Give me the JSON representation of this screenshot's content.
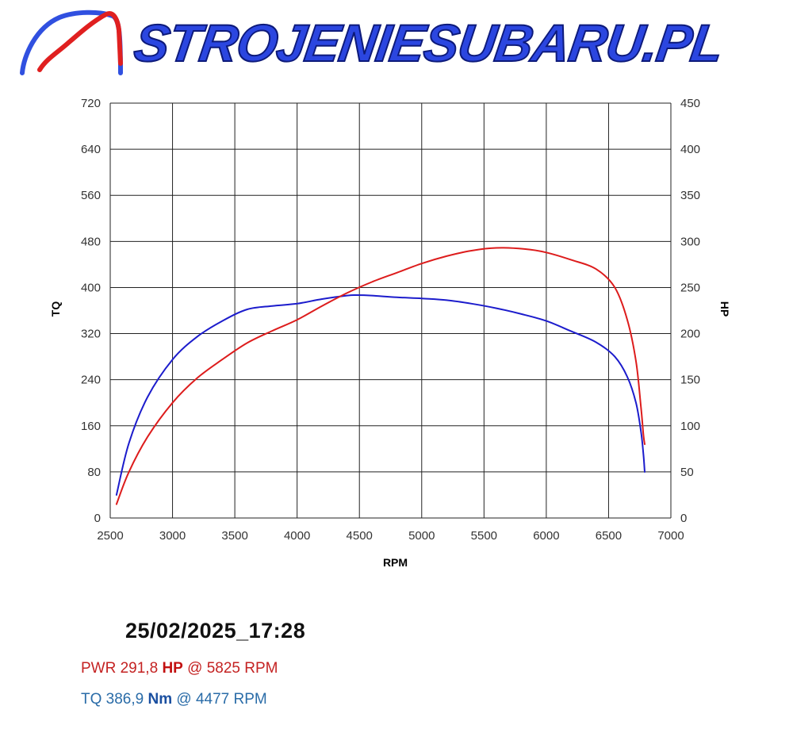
{
  "brand": {
    "name": "STROJENIESUBARU.PL",
    "logo_colors": {
      "power_curve": "#e02020",
      "torque_curve": "#3050e0"
    }
  },
  "run": {
    "timestamp": "25/02/2025_17:28",
    "pwr": {
      "prefix": "PWR 291,8",
      "unit": "HP",
      "suffix": "@ 5825 RPM"
    },
    "tq": {
      "prefix": "TQ 386,9",
      "unit": "Nm",
      "suffix": "@ 4477 RPM"
    }
  },
  "colors": {
    "power": "#dd1c1c",
    "torque": "#1c1ccc",
    "grid": "#222222"
  },
  "chart_data": {
    "type": "line",
    "xlabel": "RPM",
    "ylabel_left": "TQ",
    "ylabel_right": "HP",
    "xlim": [
      2500,
      7000
    ],
    "ylim_left": [
      0,
      720
    ],
    "ylim_right": [
      0,
      450
    ],
    "xticks": [
      2500,
      3000,
      3500,
      4000,
      4500,
      5000,
      5500,
      6000,
      6500,
      7000
    ],
    "yticks_left": [
      0,
      80,
      160,
      240,
      320,
      400,
      480,
      560,
      640,
      720
    ],
    "yticks_right": [
      0,
      50,
      100,
      150,
      200,
      250,
      300,
      350,
      400,
      450
    ],
    "grid": true,
    "series": [
      {
        "name": "TQ",
        "axis": "left",
        "color": "#1c1ccc",
        "x": [
          2550,
          2650,
          2800,
          3000,
          3200,
          3400,
          3600,
          3800,
          4000,
          4200,
          4400,
          4477,
          4600,
          4800,
          5000,
          5200,
          5400,
          5600,
          5800,
          6000,
          6200,
          6400,
          6550,
          6650,
          6720,
          6760,
          6780,
          6790
        ],
        "y": [
          40,
          130,
          210,
          275,
          315,
          342,
          362,
          368,
          372,
          380,
          386,
          386.9,
          386,
          383,
          381,
          378,
          372,
          364,
          354,
          342,
          324,
          305,
          280,
          245,
          200,
          150,
          110,
          80
        ]
      },
      {
        "name": "HP",
        "axis": "right",
        "color": "#dd1c1c",
        "x": [
          2550,
          2650,
          2800,
          3000,
          3200,
          3400,
          3600,
          3800,
          4000,
          4200,
          4400,
          4600,
          4800,
          5000,
          5200,
          5400,
          5600,
          5825,
          6000,
          6200,
          6400,
          6550,
          6650,
          6720,
          6760,
          6780,
          6790
        ],
        "y": [
          15,
          50,
          88,
          125,
          152,
          172,
          190,
          203,
          215,
          230,
          244,
          256,
          266,
          276,
          284,
          290,
          293,
          291.8,
          288,
          280,
          270,
          250,
          215,
          170,
          120,
          90,
          80
        ]
      }
    ]
  }
}
